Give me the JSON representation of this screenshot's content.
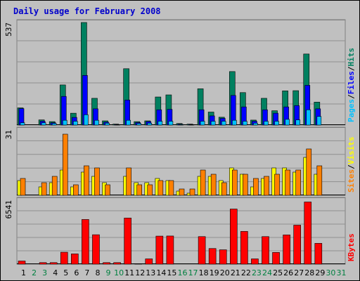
{
  "title": "Daily usage for February 2008",
  "colors": {
    "background": "#c0c0c0",
    "title": "#0000cc",
    "hits": "#008060",
    "files": "#0000ff",
    "pages": "#00c0ff",
    "visits": "#ffff00",
    "sites": "#ff8000",
    "kbytes": "#ff0000",
    "weekday_label": "#000000",
    "weekend_label": "#008040"
  },
  "chart_data": [
    {
      "type": "bar",
      "panel": "top",
      "ymax_label": "537",
      "ylim": [
        0,
        537
      ],
      "legend": [
        "Pages",
        "/",
        "Files",
        "/",
        "Hits"
      ],
      "categories": [
        "1",
        "2",
        "3",
        "4",
        "5",
        "6",
        "7",
        "8",
        "9",
        "10",
        "11",
        "12",
        "13",
        "14",
        "15",
        "16",
        "17",
        "18",
        "19",
        "20",
        "21",
        "22",
        "23",
        "24",
        "25",
        "26",
        "27",
        "28",
        "29",
        "30",
        "31"
      ],
      "weekend_days": [
        2,
        3,
        9,
        10,
        16,
        17,
        23,
        24,
        30,
        31
      ],
      "series": [
        {
          "name": "Hits",
          "values": [
            90,
            0,
            27,
            18,
            210,
            62,
            537,
            140,
            22,
            5,
            295,
            18,
            22,
            147,
            158,
            8,
            5,
            190,
            68,
            41,
            280,
            170,
            26,
            140,
            75,
            179,
            180,
            372,
            120,
            0,
            0
          ]
        },
        {
          "name": "Files",
          "values": [
            86,
            0,
            20,
            12,
            150,
            40,
            260,
            85,
            15,
            3,
            131,
            13,
            18,
            80,
            82,
            5,
            3,
            80,
            48,
            35,
            155,
            95,
            20,
            80,
            62,
            95,
            102,
            208,
            85,
            0,
            0
          ]
        },
        {
          "name": "Pages",
          "values": [
            12,
            0,
            12,
            8,
            25,
            20,
            54,
            25,
            10,
            2,
            25,
            8,
            10,
            20,
            20,
            3,
            2,
            20,
            20,
            20,
            25,
            20,
            10,
            20,
            20,
            30,
            27,
            80,
            45,
            0,
            0
          ]
        }
      ]
    },
    {
      "type": "bar",
      "panel": "middle",
      "ymax_label": "31",
      "ylim": [
        0,
        31
      ],
      "legend": [
        "Sites",
        "/",
        "Visits"
      ],
      "categories": [
        "1",
        "2",
        "3",
        "4",
        "5",
        "6",
        "7",
        "8",
        "9",
        "10",
        "11",
        "12",
        "13",
        "14",
        "15",
        "16",
        "17",
        "18",
        "19",
        "20",
        "21",
        "22",
        "23",
        "24",
        "25",
        "26",
        "27",
        "28",
        "29",
        "30",
        "31"
      ],
      "series": [
        {
          "name": "Visits",
          "values": [
            7,
            0,
            4,
            6,
            12,
            4,
            11,
            9,
            6,
            0,
            9,
            6,
            6,
            8,
            7,
            2,
            1,
            9,
            9,
            7,
            13,
            10,
            4,
            8,
            13,
            13,
            11,
            18,
            10,
            0,
            0
          ]
        },
        {
          "name": "Sites",
          "values": [
            8,
            0,
            6,
            9,
            29,
            5,
            14,
            13,
            5,
            0,
            13,
            5,
            5,
            7,
            7,
            3,
            3,
            12,
            10,
            6,
            12,
            10,
            8,
            9,
            10,
            12,
            12,
            22,
            14,
            0,
            0
          ]
        }
      ]
    },
    {
      "type": "bar",
      "panel": "bottom",
      "ymax_label": "6541",
      "ylim": [
        0,
        6541
      ],
      "legend": [
        "KBytes"
      ],
      "categories": [
        "1",
        "2",
        "3",
        "4",
        "5",
        "6",
        "7",
        "8",
        "9",
        "10",
        "11",
        "12",
        "13",
        "14",
        "15",
        "16",
        "17",
        "18",
        "19",
        "20",
        "21",
        "22",
        "23",
        "24",
        "25",
        "26",
        "27",
        "28",
        "29",
        "30",
        "31"
      ],
      "series": [
        {
          "name": "KBytes",
          "values": [
            320,
            0,
            160,
            160,
            1220,
            1050,
            4570,
            3010,
            160,
            160,
            4720,
            40,
            540,
            2870,
            2880,
            0,
            0,
            2820,
            1600,
            1470,
            5640,
            3350,
            540,
            2820,
            1200,
            2990,
            3990,
            6360,
            2130,
            0,
            0
          ]
        }
      ]
    }
  ]
}
